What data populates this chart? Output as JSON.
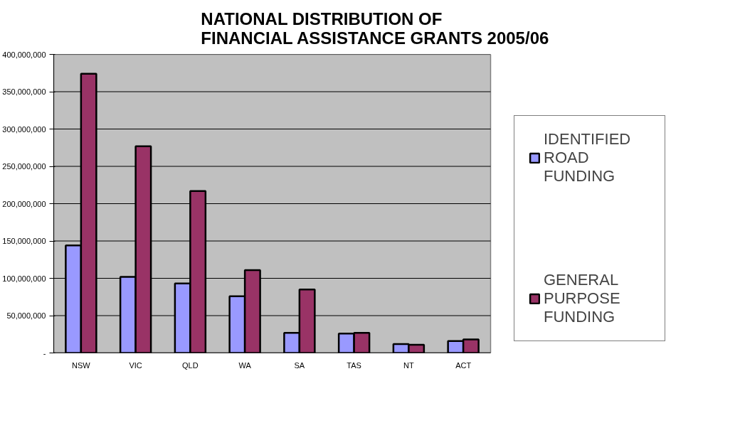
{
  "chart_data": {
    "type": "bar",
    "title": "NATIONAL DISTRIBUTION OF\nFINANCIAL ASSISTANCE GRANTS 2005/06",
    "categories": [
      "NSW",
      "VIC",
      "QLD",
      "WA",
      "SA",
      "TAS",
      "NT",
      "ACT"
    ],
    "series": [
      {
        "name": "IDENTIFIED ROAD FUNDING",
        "color": "#9999ff",
        "values": [
          144000000,
          102000000,
          93000000,
          76000000,
          27000000,
          26000000,
          12000000,
          16000000
        ]
      },
      {
        "name": "GENERAL PURPOSE FUNDING",
        "color": "#993366",
        "values": [
          374000000,
          277000000,
          217000000,
          111000000,
          85000000,
          27000000,
          11000000,
          18000000
        ]
      }
    ],
    "ylim": [
      0,
      400000000
    ],
    "yticks": [
      {
        "value": 0,
        "label": "-"
      },
      {
        "value": 50000000,
        "label": "50,000,000"
      },
      {
        "value": 100000000,
        "label": "100,000,000"
      },
      {
        "value": 150000000,
        "label": "150,000,000"
      },
      {
        "value": 200000000,
        "label": "200,000,000"
      },
      {
        "value": 250000000,
        "label": "250,000,000"
      },
      {
        "value": 300000000,
        "label": "300,000,000"
      },
      {
        "value": 350000000,
        "label": "350,000,000"
      },
      {
        "value": 400000000,
        "label": "400,000,000"
      }
    ],
    "grid": "y",
    "legend": "right"
  }
}
